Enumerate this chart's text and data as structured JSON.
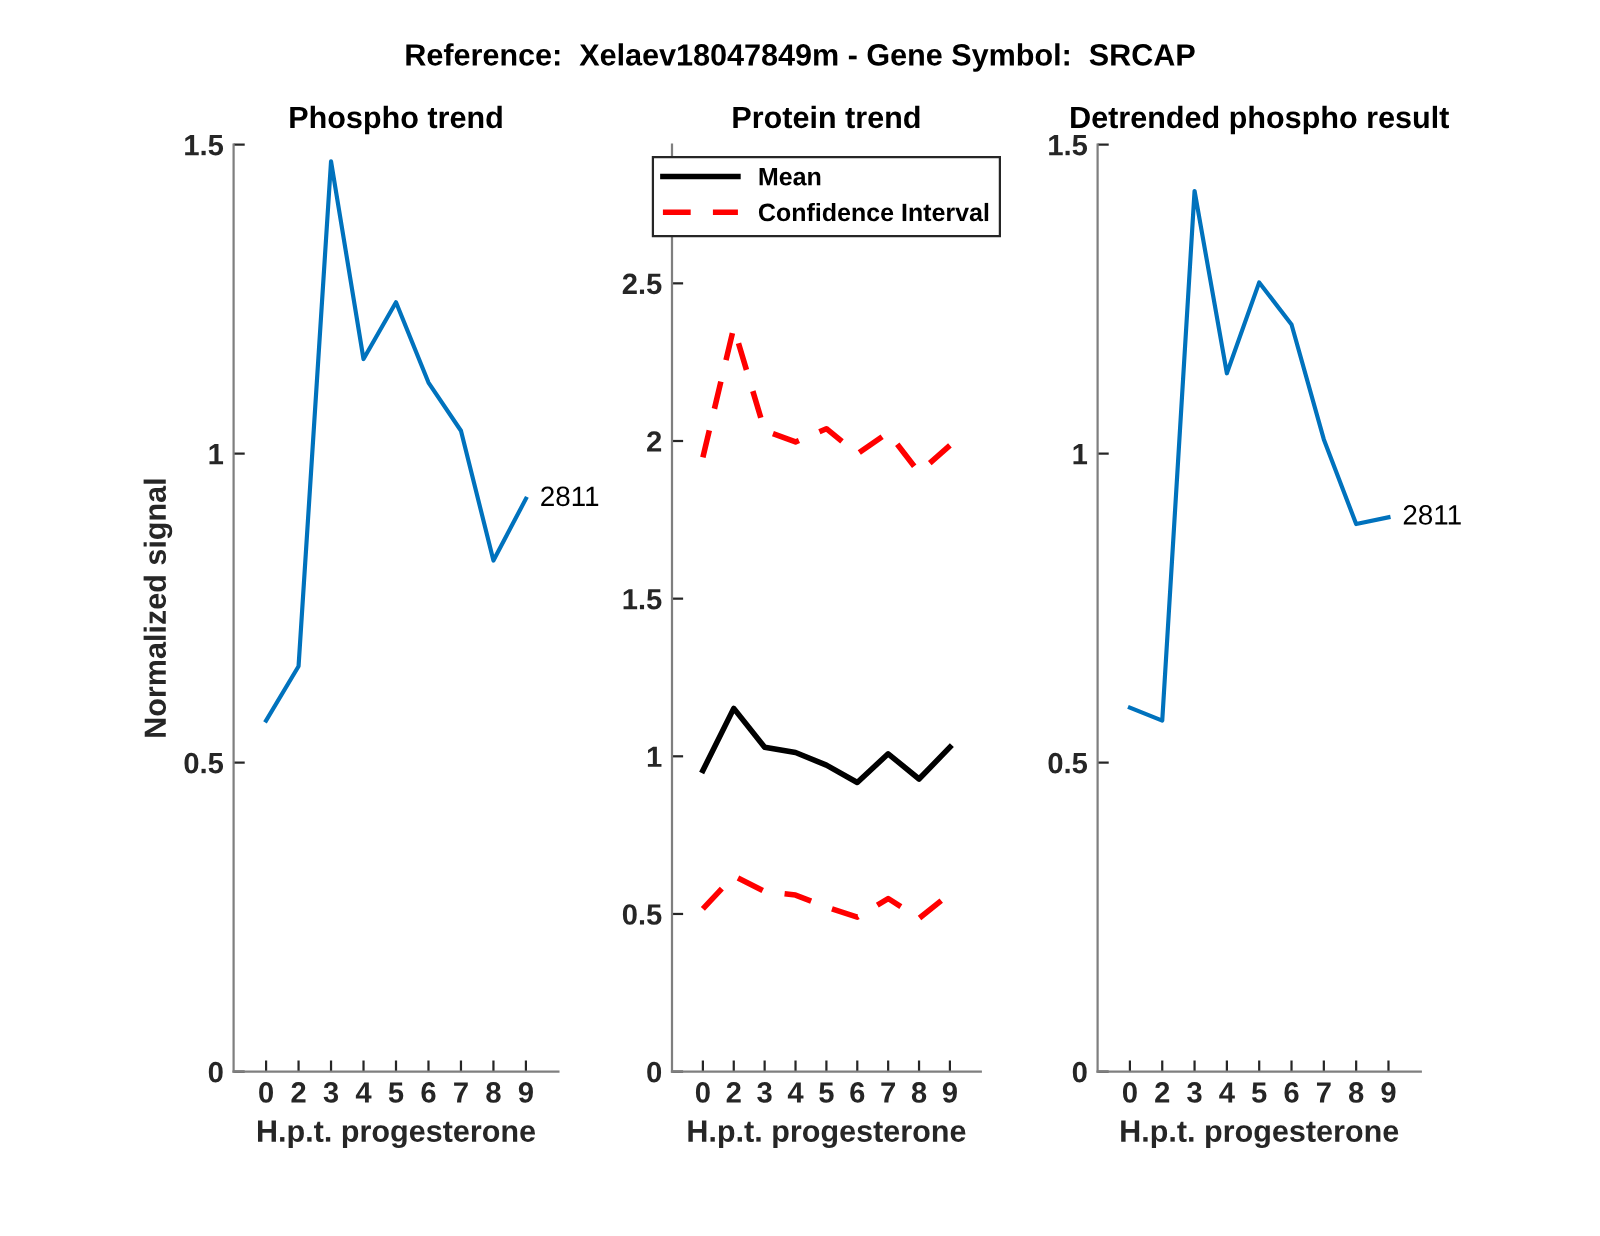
{
  "chart_data": [
    {
      "type": "line",
      "title": "Phospho trend",
      "xlabel": "H.p.t. progesterone",
      "ylabel": "Normalized signal",
      "categories": [
        "0",
        "2",
        "3",
        "4",
        "5",
        "6",
        "7",
        "8",
        "9"
      ],
      "series": [
        {
          "color": "#0072bd",
          "values": [
            0.568,
            0.656,
            1.473,
            1.153,
            1.245,
            1.115,
            1.037,
            0.827,
            0.927
          ],
          "line_style": "solid"
        }
      ],
      "ylim": [
        0,
        1.5
      ],
      "yticks": [
        0,
        0.5,
        1,
        1.5
      ],
      "grid": false,
      "legend": false,
      "marker": "none",
      "annotations": [
        "Reference:  Xelaev18047849m - Gene Symbol:  SRCAP",
        {
          "text": "2811",
          "x": "9",
          "y": 0.927
        }
      ]
    },
    {
      "type": "line",
      "title": "Protein trend",
      "xlabel": "H.p.t. progesterone",
      "categories": [
        "0",
        "2",
        "3",
        "4",
        "5",
        "6",
        "7",
        "8",
        "9"
      ],
      "series": [
        {
          "name": "Mean",
          "color": "#000000",
          "line_style": "solid",
          "values": [
            0.955,
            1.152,
            1.029,
            1.012,
            0.972,
            0.917,
            1.008,
            0.928,
            1.029
          ]
        },
        {
          "name": "Confidence Interval",
          "color": "#ff0000",
          "line_style": "dashed",
          "values": [
            1.948,
            2.36,
            2.033,
            1.997,
            2.039,
            1.959,
            2.027,
            1.9,
            1.986
          ]
        },
        {
          "color": "#ff0000",
          "line_style": "dashed",
          "values": [
            0.516,
            0.621,
            0.571,
            0.56,
            0.522,
            0.49,
            0.549,
            0.486,
            0.564
          ]
        }
      ],
      "ylim": [
        0,
        2.94
      ],
      "yticks": [
        0,
        0.5,
        1,
        1.5,
        2,
        2.5
      ],
      "grid": false,
      "legend": "top",
      "marker": "none"
    },
    {
      "type": "line",
      "title": "Detrended phospho result",
      "xlabel": "H.p.t. progesterone",
      "categories": [
        "0",
        "2",
        "3",
        "4",
        "5",
        "6",
        "7",
        "8",
        "9"
      ],
      "series": [
        {
          "color": "#0072bd",
          "values": [
            0.589,
            0.568,
            1.425,
            1.13,
            1.277,
            1.209,
            1.023,
            0.886,
            0.897
          ],
          "line_style": "solid"
        }
      ],
      "ylim": [
        0,
        1.5
      ],
      "yticks": [
        0,
        0.5,
        1,
        1.5
      ],
      "grid": false,
      "legend": false,
      "marker": "none",
      "annotations": [
        {
          "text": "2811",
          "x": "9",
          "y": 0.897
        }
      ]
    }
  ]
}
